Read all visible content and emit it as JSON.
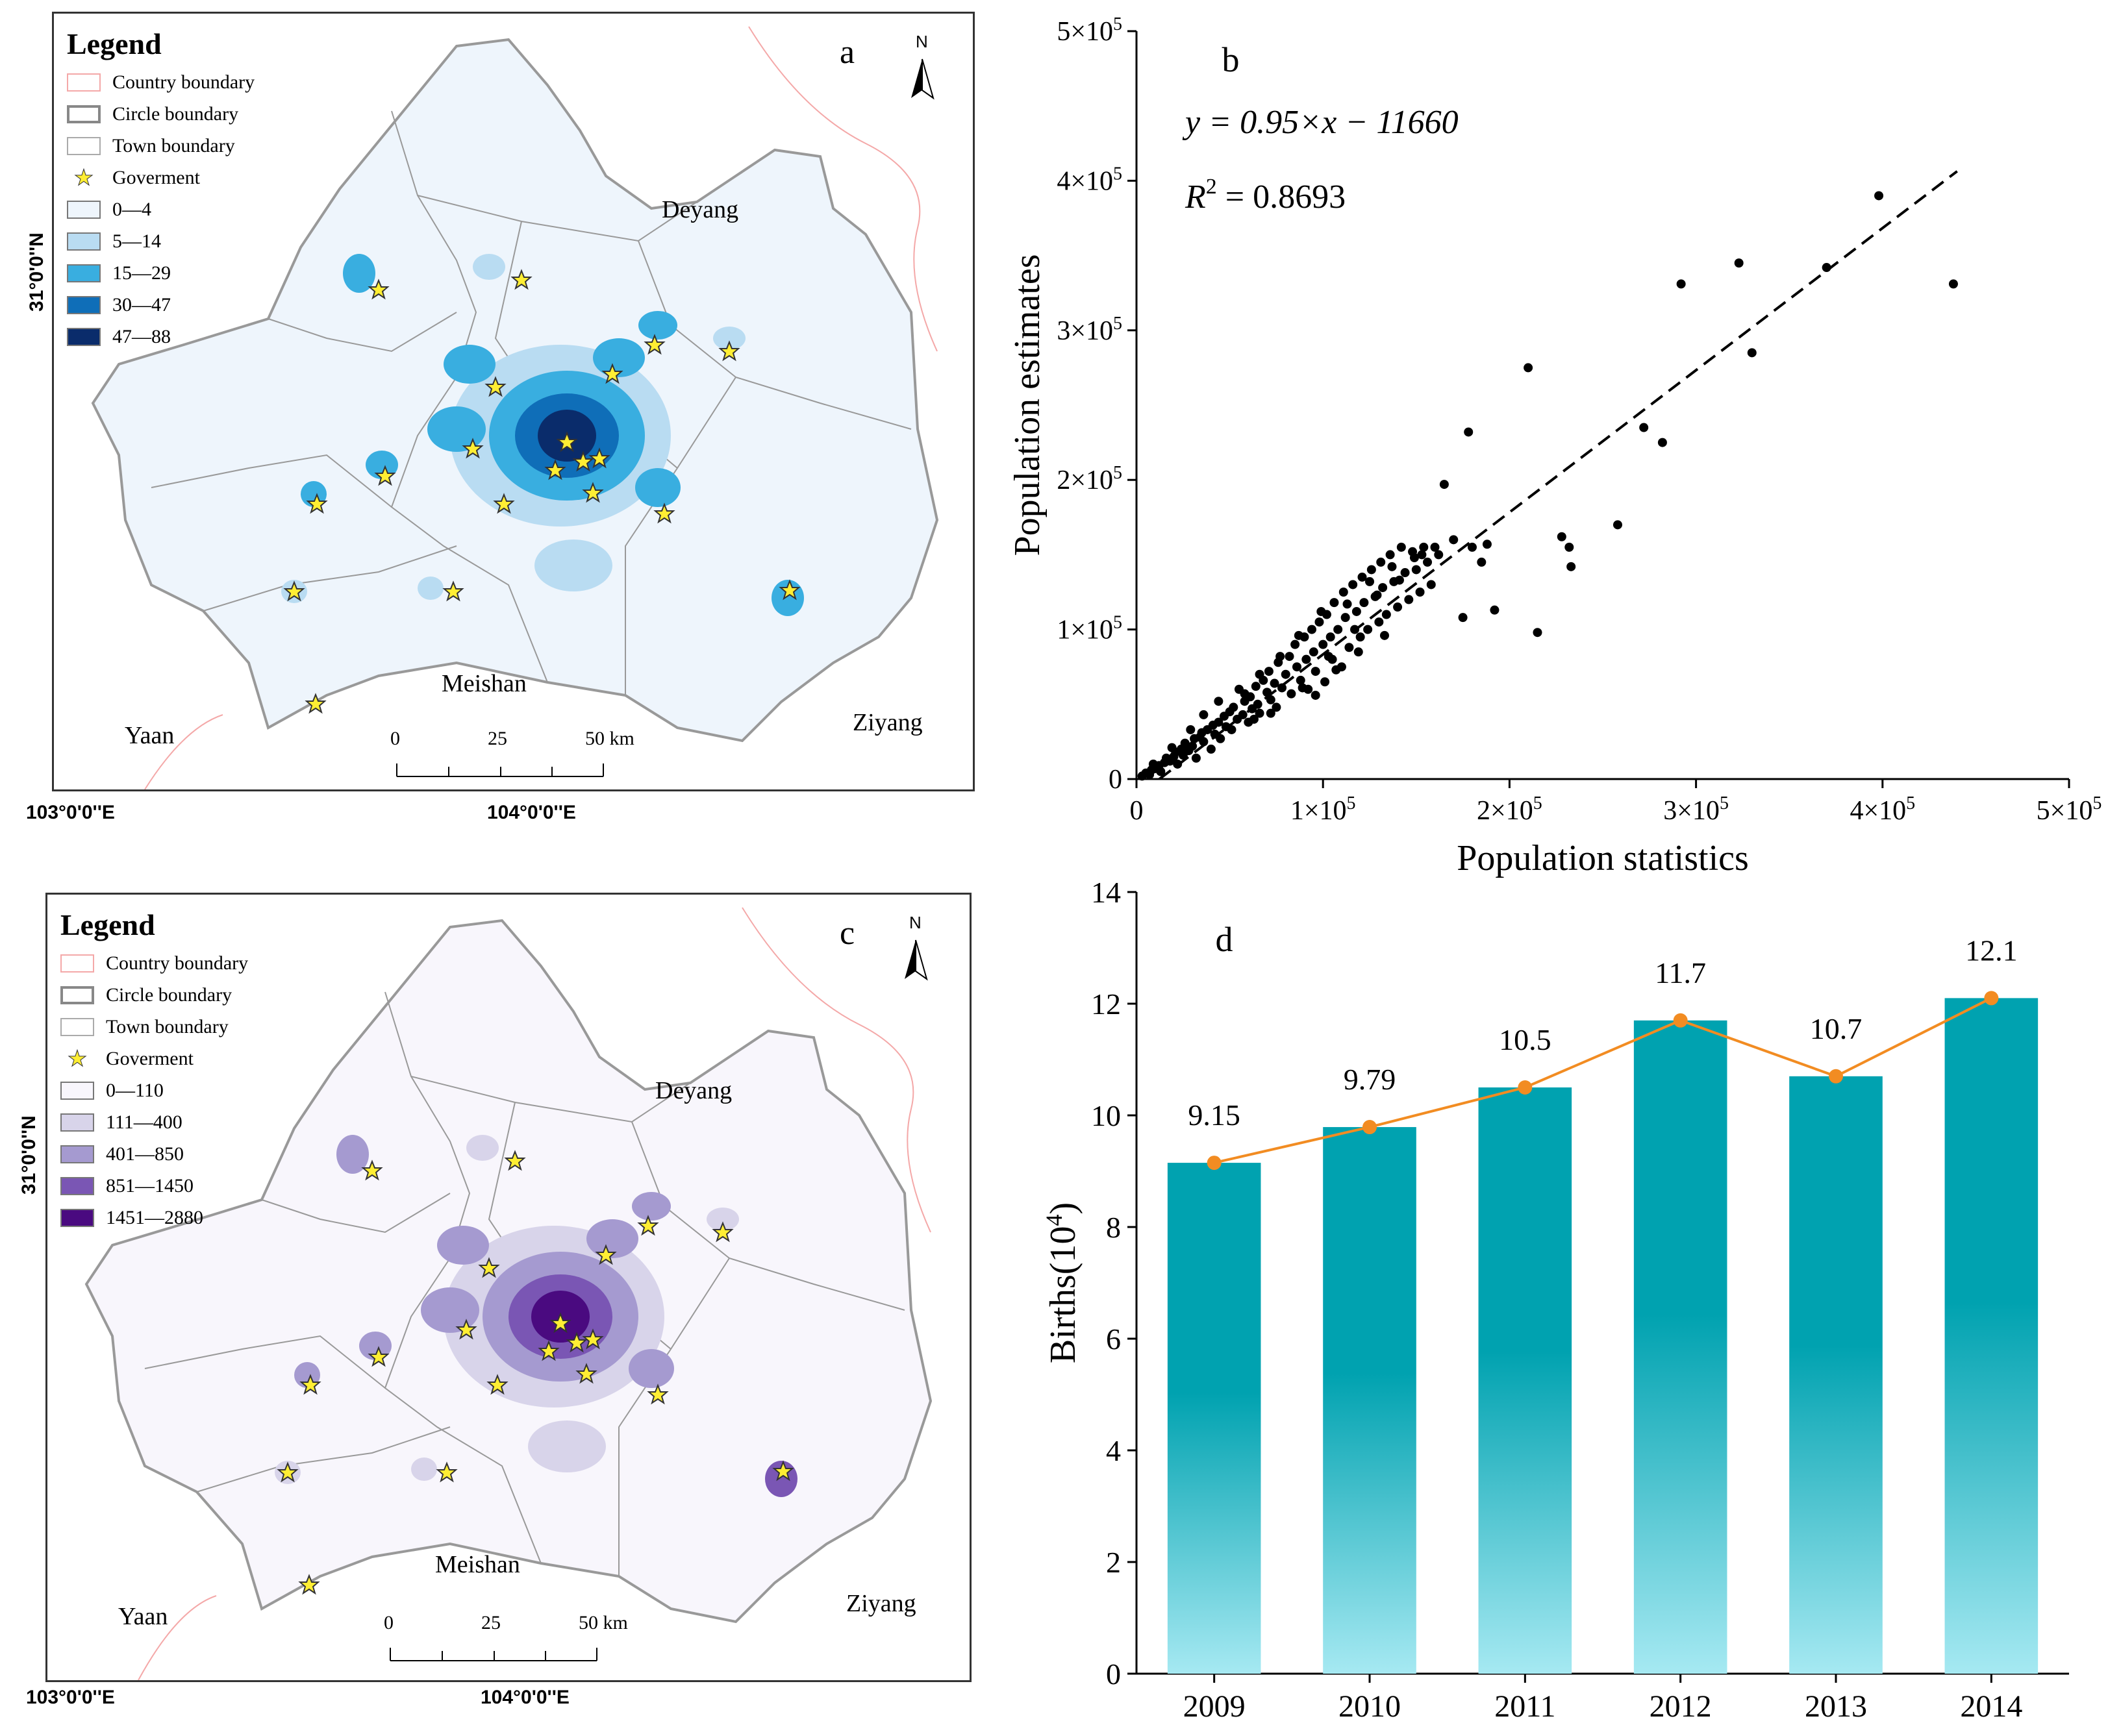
{
  "map_a": {
    "letter": "a",
    "legend_title": "Legend",
    "legend_items": [
      {
        "label": "Country boundary",
        "kind": "boundary",
        "color": "#f4a8a8"
      },
      {
        "label": "Circle boundary",
        "kind": "boundary",
        "color": "#888888"
      },
      {
        "label": "Town boundary",
        "kind": "boundary",
        "color": "#aaaaaa"
      },
      {
        "label": "Goverment",
        "kind": "star",
        "color": "#ffee33"
      },
      {
        "label": "0—4",
        "kind": "fill",
        "color": "#eef5fc"
      },
      {
        "label": "5—14",
        "kind": "fill",
        "color": "#b9dcf2"
      },
      {
        "label": "15—29",
        "kind": "fill",
        "color": "#39aee0"
      },
      {
        "label": "30—47",
        "kind": "fill",
        "color": "#0f6eb8"
      },
      {
        "label": "47—88",
        "kind": "fill",
        "color": "#0a2c6b"
      }
    ],
    "places": {
      "deyang": "Deyang",
      "meishan": "Meishan",
      "yaan": "Yaan",
      "ziyang": "Ziyang"
    },
    "north": "N",
    "scale": {
      "s0": "0",
      "s1": "25",
      "s2": "50 km"
    },
    "lat_label": "31°0'0''N",
    "lon_labels": {
      "left": "103°0'0''E",
      "right": "104°0'0''E"
    }
  },
  "map_c": {
    "letter": "c",
    "legend_title": "Legend",
    "legend_items": [
      {
        "label": "Country boundary",
        "kind": "boundary",
        "color": "#f4a8a8"
      },
      {
        "label": "Circle boundary",
        "kind": "boundary",
        "color": "#888888"
      },
      {
        "label": "Town boundary",
        "kind": "boundary",
        "color": "#aaaaaa"
      },
      {
        "label": "Goverment",
        "kind": "star",
        "color": "#ffee33"
      },
      {
        "label": "0—110",
        "kind": "fill",
        "color": "#f8f6fc"
      },
      {
        "label": "111—400",
        "kind": "fill",
        "color": "#d8d4ea"
      },
      {
        "label": "401—850",
        "kind": "fill",
        "color": "#a59ad0"
      },
      {
        "label": "851—1450",
        "kind": "fill",
        "color": "#7a56b4"
      },
      {
        "label": "1451—2880",
        "kind": "fill",
        "color": "#4a0a80"
      }
    ],
    "places": {
      "deyang": "Deyang",
      "meishan": "Meishan",
      "yaan": "Yaan",
      "ziyang": "Ziyang"
    },
    "north": "N",
    "scale": {
      "s0": "0",
      "s1": "25",
      "s2": "50 km"
    },
    "lat_label": "31°0'0''N",
    "lon_labels": {
      "left": "103°0'0''E",
      "right": "104°0'0''E"
    }
  },
  "chart_data": [
    {
      "panel": "b",
      "type": "scatter",
      "letter": "b",
      "equation": "y = 0.95×x − 11660",
      "r2_label": "R",
      "r2_sup": "2",
      "r2_value": "= 0.8693",
      "xlabel": "Population statistics",
      "ylabel": "Population estimates",
      "xlim": [
        0,
        500000
      ],
      "ylim": [
        0,
        500000
      ],
      "ticks": [
        0,
        100000,
        200000,
        300000,
        400000,
        500000
      ],
      "tick_zero": "0",
      "tick_base": "×10",
      "tick_exp": "5",
      "tick_mult": [
        "1",
        "2",
        "3",
        "4",
        "5"
      ],
      "fit": {
        "slope": 0.95,
        "intercept": -11660,
        "x_range": [
          0,
          440000
        ]
      },
      "points": [
        [
          3000,
          2000
        ],
        [
          5000,
          4000
        ],
        [
          7000,
          3000
        ],
        [
          8000,
          6000
        ],
        [
          10000,
          7000
        ],
        [
          12000,
          9000
        ],
        [
          13000,
          5000
        ],
        [
          15000,
          11000
        ],
        [
          16000,
          14000
        ],
        [
          18000,
          12000
        ],
        [
          20000,
          15000
        ],
        [
          21000,
          18000
        ],
        [
          22000,
          10000
        ],
        [
          24000,
          20000
        ],
        [
          25000,
          16000
        ],
        [
          26000,
          24000
        ],
        [
          28000,
          19000
        ],
        [
          30000,
          22000
        ],
        [
          31000,
          27000
        ],
        [
          32000,
          14000
        ],
        [
          34000,
          28000
        ],
        [
          35000,
          31000
        ],
        [
          36000,
          25000
        ],
        [
          38000,
          33000
        ],
        [
          40000,
          20000
        ],
        [
          41000,
          36000
        ],
        [
          42000,
          30000
        ],
        [
          44000,
          38000
        ],
        [
          45000,
          27000
        ],
        [
          47000,
          42000
        ],
        [
          48000,
          35000
        ],
        [
          50000,
          45000
        ],
        [
          51000,
          33000
        ],
        [
          52000,
          48000
        ],
        [
          54000,
          40000
        ],
        [
          55000,
          60000
        ],
        [
          57000,
          43000
        ],
        [
          58000,
          52000
        ],
        [
          60000,
          38000
        ],
        [
          61000,
          55000
        ],
        [
          62000,
          47000
        ],
        [
          64000,
          62000
        ],
        [
          65000,
          50000
        ],
        [
          66000,
          44000
        ],
        [
          68000,
          66000
        ],
        [
          70000,
          58000
        ],
        [
          71000,
          72000
        ],
        [
          72000,
          53000
        ],
        [
          74000,
          64000
        ],
        [
          75000,
          48000
        ],
        [
          76000,
          78000
        ],
        [
          78000,
          61000
        ],
        [
          80000,
          70000
        ],
        [
          82000,
          82000
        ],
        [
          83000,
          57000
        ],
        [
          85000,
          90000
        ],
        [
          86000,
          75000
        ],
        [
          88000,
          66000
        ],
        [
          90000,
          95000
        ],
        [
          91000,
          80000
        ],
        [
          92000,
          60000
        ],
        [
          94000,
          100000
        ],
        [
          95000,
          85000
        ],
        [
          96000,
          72000
        ],
        [
          98000,
          105000
        ],
        [
          100000,
          90000
        ],
        [
          101000,
          65000
        ],
        [
          102000,
          110000
        ],
        [
          104000,
          95000
        ],
        [
          105000,
          80000
        ],
        [
          106000,
          118000
        ],
        [
          108000,
          100000
        ],
        [
          110000,
          75000
        ],
        [
          111000,
          125000
        ],
        [
          112000,
          108000
        ],
        [
          114000,
          88000
        ],
        [
          116000,
          130000
        ],
        [
          118000,
          112000
        ],
        [
          120000,
          95000
        ],
        [
          121000,
          135000
        ],
        [
          122000,
          118000
        ],
        [
          124000,
          100000
        ],
        [
          126000,
          140000
        ],
        [
          128000,
          122000
        ],
        [
          130000,
          105000
        ],
        [
          131000,
          145000
        ],
        [
          132000,
          128000
        ],
        [
          134000,
          110000
        ],
        [
          136000,
          150000
        ],
        [
          138000,
          132000
        ],
        [
          140000,
          115000
        ],
        [
          142000,
          155000
        ],
        [
          144000,
          138000
        ],
        [
          146000,
          120000
        ],
        [
          148000,
          152000
        ],
        [
          150000,
          140000
        ],
        [
          152000,
          125000
        ],
        [
          154000,
          155000
        ],
        [
          156000,
          145000
        ],
        [
          158000,
          130000
        ],
        [
          160000,
          155000
        ],
        [
          162000,
          150000
        ],
        [
          165000,
          197000
        ],
        [
          170000,
          160000
        ],
        [
          175000,
          108000
        ],
        [
          178000,
          232000
        ],
        [
          180000,
          155000
        ],
        [
          185000,
          145000
        ],
        [
          188000,
          157000
        ],
        [
          192000,
          113000
        ],
        [
          210000,
          275000
        ],
        [
          215000,
          98000
        ],
        [
          228000,
          162000
        ],
        [
          232000,
          155000
        ],
        [
          233000,
          142000
        ],
        [
          258000,
          170000
        ],
        [
          272000,
          235000
        ],
        [
          282000,
          225000
        ],
        [
          292000,
          331000
        ],
        [
          323000,
          345000
        ],
        [
          330000,
          285000
        ],
        [
          370000,
          342000
        ],
        [
          398000,
          390000
        ],
        [
          438000,
          331000
        ],
        [
          66000,
          70000
        ],
        [
          44000,
          52000
        ],
        [
          36000,
          43000
        ],
        [
          29000,
          33000
        ],
        [
          19000,
          21000
        ],
        [
          9000,
          10000
        ],
        [
          58000,
          57000
        ],
        [
          77000,
          82000
        ],
        [
          87000,
          96000
        ],
        [
          99000,
          112000
        ],
        [
          113000,
          117000
        ],
        [
          125000,
          132000
        ],
        [
          137000,
          142000
        ],
        [
          149000,
          148000
        ],
        [
          63000,
          40000
        ],
        [
          89000,
          61000
        ],
        [
          103000,
          82000
        ],
        [
          117000,
          100000
        ],
        [
          129000,
          123000
        ],
        [
          141000,
          133000
        ],
        [
          153000,
          150000
        ],
        [
          72000,
          44000
        ],
        [
          96000,
          56000
        ],
        [
          107000,
          73000
        ],
        [
          119000,
          85000
        ],
        [
          133000,
          96000
        ]
      ]
    },
    {
      "panel": "d",
      "type": "bar",
      "letter": "d",
      "categories": [
        "2009",
        "2010",
        "2011",
        "2012",
        "2013",
        "2014"
      ],
      "values": [
        9.15,
        9.79,
        10.5,
        11.7,
        10.7,
        12.1
      ],
      "value_labels": [
        "9.15",
        "9.79",
        "10.5",
        "11.7",
        "10.7",
        "12.1"
      ],
      "line_series": {
        "name": "Births",
        "values": [
          9.15,
          9.79,
          10.5,
          11.7,
          10.7,
          12.1
        ]
      },
      "ylabel": "Births(10",
      "ylabel_sup": "4",
      "ylabel_end": ")",
      "ylim": [
        0,
        14
      ],
      "yticks": [
        "0",
        "2",
        "4",
        "6",
        "8",
        "10",
        "12",
        "14"
      ],
      "bar_color_top": "#00a2b0",
      "bar_color_bottom": "#a6e9f2",
      "line_color": "#f28c22"
    }
  ]
}
